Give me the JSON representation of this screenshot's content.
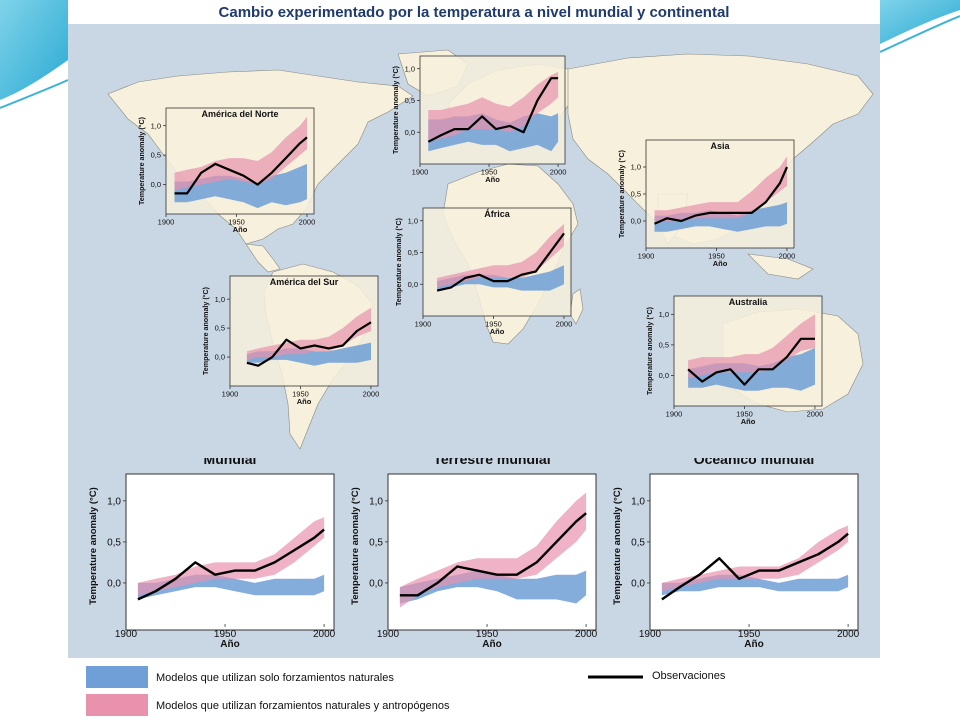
{
  "page": {
    "title": "Cambio experimentado por la temperatura a nivel mundial y continental",
    "colors": {
      "natural": "#6f9fd6",
      "anthro": "#e892ae",
      "observed": "#000000",
      "map_land": "#f7f0dc",
      "background": "#c9d6e4"
    }
  },
  "legend": {
    "natural_label": "Modelos que utilizan solo forzamientos naturales",
    "anthro_label": "Modelos que utilizan forzamientos naturales y antropógenos",
    "observed_label": "Observaciones"
  },
  "chart_data": [
    {
      "id": "europe",
      "type": "area",
      "title": "",
      "xlabel": "Año",
      "ylabel": "Temperature anomaly (°C)",
      "xlim": [
        1900,
        2005
      ],
      "ylim": [
        -0.5,
        1.2
      ],
      "x_ticks": [
        1900,
        1950,
        2000
      ],
      "y_ticks": [
        0.0,
        0.5,
        1.0
      ],
      "x_tick_labels": [
        "1900",
        "1950",
        "2000"
      ],
      "y_tick_labels": [
        "0,0",
        "0,5",
        "1,0"
      ],
      "x": [
        1906,
        1915,
        1925,
        1935,
        1945,
        1955,
        1965,
        1975,
        1985,
        1995,
        2000
      ],
      "series": [
        {
          "name": "Modelos que utilizan solo forzamientos naturales",
          "lower": [
            -0.3,
            -0.25,
            -0.2,
            -0.15,
            -0.2,
            -0.2,
            -0.3,
            -0.25,
            -0.2,
            -0.3,
            -0.15
          ],
          "upper": [
            0.2,
            0.2,
            0.25,
            0.25,
            0.3,
            0.2,
            0.15,
            0.25,
            0.3,
            0.25,
            0.3
          ]
        },
        {
          "name": "Modelos que utilizan forzamientos naturales y antropógenos",
          "lower": [
            -0.15,
            -0.1,
            -0.05,
            0.05,
            0.05,
            0.05,
            0.0,
            0.1,
            0.3,
            0.45,
            0.55
          ],
          "upper": [
            0.35,
            0.35,
            0.4,
            0.45,
            0.55,
            0.45,
            0.4,
            0.55,
            0.75,
            0.9,
            0.95
          ]
        },
        {
          "name": "Observaciones",
          "y": [
            -0.15,
            -0.05,
            0.05,
            0.05,
            0.25,
            0.05,
            0.1,
            0.0,
            0.5,
            0.85,
            0.85
          ]
        }
      ]
    },
    {
      "id": "north-america",
      "type": "area",
      "title": "América del Norte",
      "xlabel": "Año",
      "ylabel": "Temperature anomaly (°C)",
      "xlim": [
        1900,
        2005
      ],
      "ylim": [
        -0.5,
        1.3
      ],
      "x_ticks": [
        1900,
        1950,
        2000
      ],
      "y_ticks": [
        0.0,
        0.5,
        1.0
      ],
      "x_tick_labels": [
        "1900",
        "1950",
        "2000"
      ],
      "y_tick_labels": [
        "0,0",
        "0,5",
        "1,0"
      ],
      "x": [
        1906,
        1915,
        1925,
        1935,
        1945,
        1955,
        1965,
        1975,
        1985,
        1995,
        2000
      ],
      "series": [
        {
          "name": "Modelos que utilizan solo forzamientos naturales",
          "lower": [
            -0.3,
            -0.3,
            -0.25,
            -0.2,
            -0.25,
            -0.3,
            -0.4,
            -0.3,
            -0.35,
            -0.3,
            -0.25
          ],
          "upper": [
            0.05,
            0.05,
            0.1,
            0.15,
            0.15,
            0.1,
            0.0,
            0.15,
            0.2,
            0.3,
            0.35
          ]
        },
        {
          "name": "Modelos que utilizan forzamientos naturales y antropógenos",
          "lower": [
            -0.1,
            -0.05,
            0.0,
            0.05,
            0.1,
            0.05,
            0.0,
            0.1,
            0.3,
            0.5,
            0.6
          ],
          "upper": [
            0.2,
            0.25,
            0.3,
            0.4,
            0.45,
            0.45,
            0.4,
            0.55,
            0.8,
            1.0,
            1.15
          ]
        },
        {
          "name": "Observaciones",
          "y": [
            -0.15,
            -0.15,
            0.2,
            0.35,
            0.25,
            0.15,
            0.0,
            0.2,
            0.45,
            0.7,
            0.8
          ]
        }
      ]
    },
    {
      "id": "asia",
      "type": "area",
      "title": "Asia",
      "xlabel": "Año",
      "ylabel": "Temperature anomaly (°C)",
      "xlim": [
        1900,
        2005
      ],
      "ylim": [
        -0.5,
        1.5
      ],
      "x_ticks": [
        1900,
        1950,
        2000
      ],
      "y_ticks": [
        0.0,
        0.5,
        1.0
      ],
      "x_tick_labels": [
        "1900",
        "1950",
        "2000"
      ],
      "y_tick_labels": [
        "0,0",
        "0,5",
        "1,0"
      ],
      "x": [
        1906,
        1915,
        1925,
        1935,
        1945,
        1955,
        1965,
        1975,
        1985,
        1995,
        2000
      ],
      "series": [
        {
          "name": "Modelos que utilizan solo forzamientos naturales",
          "lower": [
            -0.2,
            -0.2,
            -0.15,
            -0.1,
            -0.1,
            -0.15,
            -0.2,
            -0.15,
            -0.1,
            -0.1,
            -0.05
          ],
          "upper": [
            0.1,
            0.1,
            0.15,
            0.15,
            0.2,
            0.15,
            0.1,
            0.2,
            0.25,
            0.3,
            0.35
          ]
        },
        {
          "name": "Modelos que utilizan forzamientos naturales y antropógenos",
          "lower": [
            -0.05,
            0.0,
            0.0,
            0.05,
            0.05,
            0.05,
            0.05,
            0.15,
            0.35,
            0.55,
            0.65
          ],
          "upper": [
            0.2,
            0.2,
            0.25,
            0.3,
            0.35,
            0.35,
            0.35,
            0.55,
            0.8,
            1.0,
            1.2
          ]
        },
        {
          "name": "Observaciones",
          "y": [
            -0.05,
            0.05,
            0.0,
            0.1,
            0.15,
            0.15,
            0.15,
            0.15,
            0.35,
            0.7,
            1.0
          ]
        }
      ]
    },
    {
      "id": "africa",
      "type": "area",
      "title": "África",
      "xlabel": "Año",
      "ylabel": "Temperature anomaly (°C)",
      "xlim": [
        1900,
        2005
      ],
      "ylim": [
        -0.5,
        1.2
      ],
      "x_ticks": [
        1900,
        1950,
        2000
      ],
      "y_ticks": [
        0.0,
        0.5,
        1.0
      ],
      "x_tick_labels": [
        "1900",
        "1950",
        "2000"
      ],
      "y_tick_labels": [
        "0,0",
        "0,5",
        "1,0"
      ],
      "x": [
        1910,
        1920,
        1930,
        1940,
        1950,
        1960,
        1970,
        1980,
        1990,
        2000
      ],
      "series": [
        {
          "name": "Modelos que utilizan solo forzamientos naturales",
          "lower": [
            -0.1,
            -0.05,
            0.0,
            0.0,
            -0.05,
            -0.05,
            -0.1,
            -0.1,
            -0.1,
            0.0
          ],
          "upper": [
            0.05,
            0.1,
            0.15,
            0.15,
            0.15,
            0.1,
            0.1,
            0.15,
            0.2,
            0.3
          ]
        },
        {
          "name": "Modelos que utilizan forzamientos naturales y antropógenos",
          "lower": [
            -0.05,
            0.0,
            0.05,
            0.1,
            0.1,
            0.1,
            0.1,
            0.2,
            0.4,
            0.6
          ],
          "upper": [
            0.1,
            0.15,
            0.2,
            0.25,
            0.3,
            0.3,
            0.35,
            0.5,
            0.75,
            0.95
          ]
        },
        {
          "name": "Observaciones",
          "y": [
            -0.1,
            -0.05,
            0.1,
            0.15,
            0.05,
            0.05,
            0.15,
            0.2,
            0.5,
            0.8
          ]
        }
      ]
    },
    {
      "id": "south-america",
      "type": "area",
      "title": "América del Sur",
      "xlabel": "Año",
      "ylabel": "Temperature anomaly (°C)",
      "xlim": [
        1900,
        2005
      ],
      "ylim": [
        -0.5,
        1.4
      ],
      "x_ticks": [
        1900,
        1950,
        2000
      ],
      "y_ticks": [
        0.0,
        0.5,
        1.0
      ],
      "x_tick_labels": [
        "1900",
        "1950",
        "2000"
      ],
      "y_tick_labels": [
        "0,0",
        "0,5",
        "1,0"
      ],
      "x": [
        1912,
        1920,
        1930,
        1940,
        1950,
        1960,
        1970,
        1980,
        1990,
        2000
      ],
      "series": [
        {
          "name": "Modelos que utilizan solo forzamientos naturales",
          "lower": [
            -0.1,
            -0.1,
            -0.05,
            -0.05,
            -0.1,
            -0.15,
            -0.1,
            -0.1,
            -0.1,
            -0.05
          ],
          "upper": [
            0.05,
            0.1,
            0.1,
            0.15,
            0.15,
            0.1,
            0.1,
            0.15,
            0.2,
            0.25
          ]
        },
        {
          "name": "Modelos que utilizan forzamientos naturales y antropógenos",
          "lower": [
            -0.05,
            0.0,
            0.0,
            0.05,
            0.05,
            0.1,
            0.1,
            0.2,
            0.35,
            0.45
          ],
          "upper": [
            0.1,
            0.15,
            0.2,
            0.25,
            0.3,
            0.3,
            0.35,
            0.5,
            0.7,
            0.85
          ]
        },
        {
          "name": "Observaciones",
          "y": [
            -0.1,
            -0.15,
            0.0,
            0.3,
            0.15,
            0.2,
            0.15,
            0.2,
            0.45,
            0.6
          ]
        }
      ]
    },
    {
      "id": "australia",
      "type": "area",
      "title": "Australia",
      "xlabel": "Año",
      "ylabel": "Temperature anomaly (°C)",
      "xlim": [
        1900,
        2005
      ],
      "ylim": [
        -0.5,
        1.3
      ],
      "x_ticks": [
        1900,
        1950,
        2000
      ],
      "y_ticks": [
        0.0,
        0.5,
        1.0
      ],
      "x_tick_labels": [
        "1900",
        "1950",
        "2000"
      ],
      "y_tick_labels": [
        "0,0",
        "0,5",
        "1,0"
      ],
      "x": [
        1910,
        1920,
        1930,
        1940,
        1950,
        1960,
        1970,
        1980,
        1990,
        2000
      ],
      "series": [
        {
          "name": "Modelos que utilizan solo forzamientos naturales",
          "lower": [
            -0.2,
            -0.2,
            -0.15,
            -0.2,
            -0.25,
            -0.25,
            -0.2,
            -0.2,
            -0.25,
            -0.15
          ],
          "upper": [
            0.1,
            0.15,
            0.2,
            0.2,
            0.2,
            0.15,
            0.2,
            0.3,
            0.35,
            0.45
          ]
        },
        {
          "name": "Modelos que utilizan forzamientos naturales y antropógenos",
          "lower": [
            -0.05,
            0.0,
            0.05,
            0.05,
            0.05,
            0.05,
            0.1,
            0.25,
            0.4,
            0.45
          ],
          "upper": [
            0.25,
            0.3,
            0.3,
            0.3,
            0.35,
            0.35,
            0.45,
            0.65,
            0.85,
            1.0
          ]
        },
        {
          "name": "Observaciones",
          "y": [
            0.1,
            -0.1,
            0.05,
            0.1,
            -0.15,
            0.1,
            0.1,
            0.3,
            0.6,
            0.6
          ]
        }
      ]
    },
    {
      "id": "global",
      "type": "area",
      "title": "Mundial",
      "xlabel": "Año",
      "ylabel": "Temperature anomaly (°C)",
      "xlim": [
        1900,
        2005
      ],
      "ylim": [
        -0.5,
        1.4
      ],
      "x_ticks": [
        1900,
        1950,
        2000
      ],
      "y_ticks": [
        0.0,
        0.5,
        1.0
      ],
      "x_tick_labels": [
        "1900",
        "1950",
        "2000"
      ],
      "y_tick_labels": [
        "0,0",
        "0,5",
        "1,0"
      ],
      "x": [
        1906,
        1915,
        1925,
        1935,
        1945,
        1955,
        1965,
        1975,
        1985,
        1995,
        2000
      ],
      "series": [
        {
          "name": "Modelos que utilizan solo forzamientos naturales",
          "lower": [
            -0.2,
            -0.15,
            -0.1,
            -0.05,
            -0.05,
            -0.1,
            -0.15,
            -0.15,
            -0.15,
            -0.15,
            -0.1
          ],
          "upper": [
            0.0,
            0.0,
            0.05,
            0.1,
            0.1,
            0.05,
            0.0,
            0.05,
            0.05,
            0.05,
            0.1
          ]
        },
        {
          "name": "Modelos que utilizan forzamientos naturales y antropógenos",
          "lower": [
            -0.15,
            -0.1,
            -0.05,
            0.0,
            0.05,
            0.05,
            0.05,
            0.1,
            0.25,
            0.45,
            0.55
          ],
          "upper": [
            0.0,
            0.05,
            0.1,
            0.2,
            0.25,
            0.25,
            0.25,
            0.35,
            0.55,
            0.75,
            0.8
          ]
        },
        {
          "name": "Observaciones",
          "y": [
            -0.2,
            -0.1,
            0.05,
            0.25,
            0.1,
            0.15,
            0.15,
            0.25,
            0.4,
            0.55,
            0.65
          ]
        }
      ]
    },
    {
      "id": "global-land",
      "type": "area",
      "title": "Terrestre mundial",
      "xlabel": "Año",
      "ylabel": "Temperature anomaly (°C)",
      "xlim": [
        1900,
        2005
      ],
      "ylim": [
        -0.5,
        1.4
      ],
      "x_ticks": [
        1900,
        1950,
        2000
      ],
      "y_ticks": [
        0.0,
        0.5,
        1.0
      ],
      "x_tick_labels": [
        "1900",
        "1950",
        "2000"
      ],
      "y_tick_labels": [
        "0,0",
        "0,5",
        "1,0"
      ],
      "x": [
        1906,
        1915,
        1925,
        1935,
        1945,
        1955,
        1965,
        1975,
        1985,
        1995,
        2000
      ],
      "series": [
        {
          "name": "Modelos que utilizan solo forzamientos naturales",
          "lower": [
            -0.25,
            -0.2,
            -0.1,
            -0.05,
            -0.05,
            -0.1,
            -0.2,
            -0.2,
            -0.2,
            -0.25,
            -0.15
          ],
          "upper": [
            -0.05,
            0.0,
            0.05,
            0.1,
            0.15,
            0.1,
            0.05,
            0.05,
            0.1,
            0.1,
            0.15
          ]
        },
        {
          "name": "Modelos que utilizan forzamientos naturales y antropógenos",
          "lower": [
            -0.3,
            -0.15,
            -0.05,
            0.0,
            0.05,
            0.05,
            0.05,
            0.1,
            0.3,
            0.5,
            0.65
          ],
          "upper": [
            -0.05,
            0.05,
            0.15,
            0.25,
            0.3,
            0.3,
            0.3,
            0.45,
            0.75,
            1.0,
            1.1
          ]
        },
        {
          "name": "Observaciones",
          "y": [
            -0.15,
            -0.15,
            0.0,
            0.2,
            0.15,
            0.1,
            0.1,
            0.25,
            0.5,
            0.75,
            0.85
          ]
        }
      ]
    },
    {
      "id": "global-ocean",
      "type": "area",
      "title": "Oceánico mundial",
      "xlabel": "Año",
      "ylabel": "Temperature anomaly (°C)",
      "xlim": [
        1900,
        2005
      ],
      "ylim": [
        -0.5,
        1.4
      ],
      "x_ticks": [
        1900,
        1950,
        2000
      ],
      "y_ticks": [
        0.0,
        0.5,
        1.0
      ],
      "x_tick_labels": [
        "1900",
        "1950",
        "2000"
      ],
      "y_tick_labels": [
        "0,0",
        "0,5",
        "1,0"
      ],
      "x": [
        1906,
        1915,
        1925,
        1935,
        1945,
        1955,
        1965,
        1975,
        1985,
        1995,
        2000
      ],
      "series": [
        {
          "name": "Modelos que utilizan solo forzamientos naturales",
          "lower": [
            -0.15,
            -0.1,
            -0.1,
            -0.05,
            -0.05,
            -0.05,
            -0.1,
            -0.1,
            -0.1,
            -0.1,
            -0.05
          ],
          "upper": [
            0.0,
            0.0,
            0.05,
            0.1,
            0.1,
            0.05,
            0.0,
            0.05,
            0.05,
            0.05,
            0.1
          ]
        },
        {
          "name": "Modelos que utilizan forzamientos naturales y antropógenos",
          "lower": [
            -0.1,
            -0.05,
            0.0,
            0.05,
            0.05,
            0.05,
            0.05,
            0.1,
            0.25,
            0.4,
            0.5
          ],
          "upper": [
            0.0,
            0.05,
            0.1,
            0.15,
            0.2,
            0.2,
            0.2,
            0.3,
            0.5,
            0.65,
            0.7
          ]
        },
        {
          "name": "Observaciones",
          "y": [
            -0.2,
            -0.05,
            0.1,
            0.3,
            0.05,
            0.15,
            0.15,
            0.25,
            0.35,
            0.5,
            0.6
          ]
        }
      ]
    }
  ]
}
